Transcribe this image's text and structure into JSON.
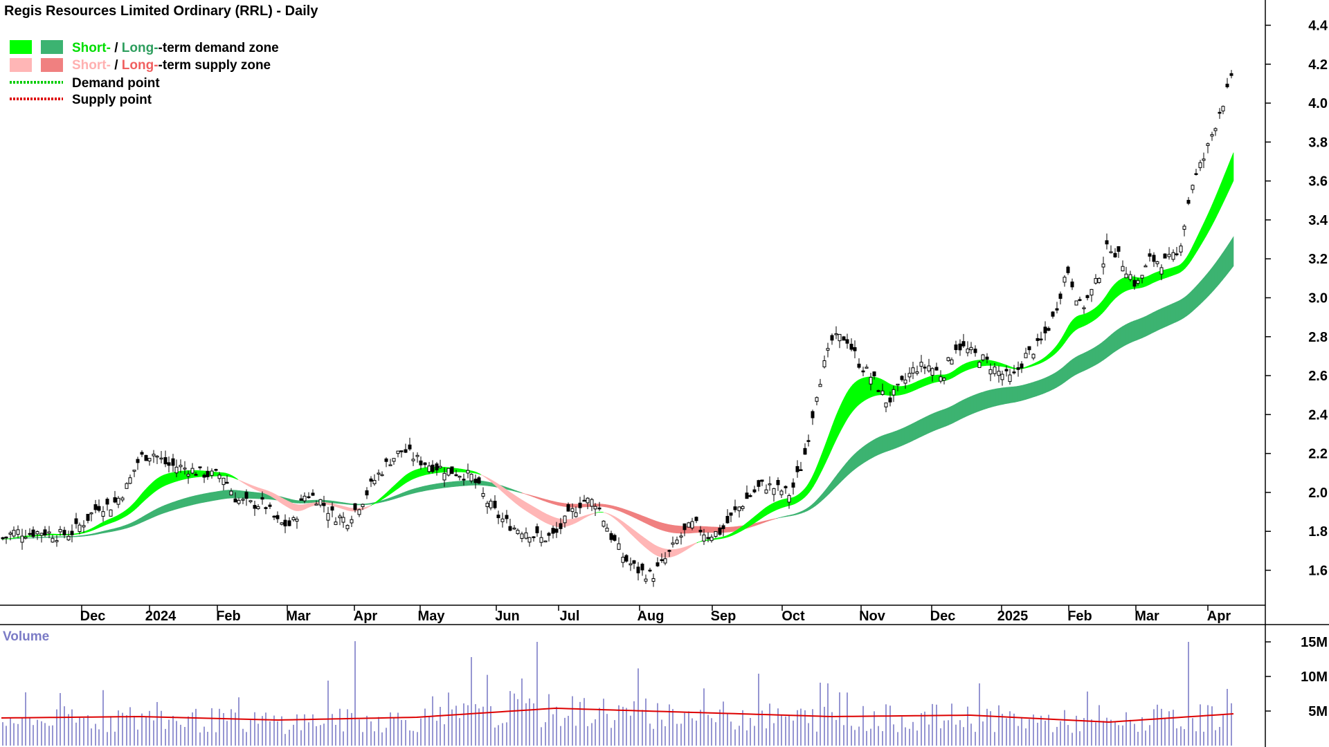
{
  "chart_data": {
    "type": "candlestick",
    "title": "Regis Resources Limited Ordinary (RRL) - Daily",
    "legend": {
      "placement": "top-left",
      "items": [
        {
          "part1": "Short-",
          "sep": " / ",
          "part2": "Long-",
          "part3": "-term demand zone",
          "kind": "demand-zone",
          "short_color": "#00ff00",
          "long_color": "#3cb371",
          "t1_color": "#00dd00",
          "t2_color": "#2e9e5e"
        },
        {
          "part1": "Short-",
          "sep": " / ",
          "part2": "Long-",
          "part3": "-term supply zone",
          "kind": "supply-zone",
          "short_color": "#ffb6b6",
          "long_color": "#f08080",
          "t1_color": "#ffb0b0",
          "t2_color": "#f06060"
        },
        {
          "label": "Demand point",
          "kind": "demand-point",
          "color": "#00cc00"
        },
        {
          "label": "Supply point",
          "kind": "supply-point",
          "color": "#dd0000"
        }
      ]
    },
    "price_axis": {
      "ticks": [
        "1.6",
        "1.8",
        "2.0",
        "2.2",
        "2.4",
        "2.6",
        "2.8",
        "3.0",
        "3.2",
        "3.4",
        "3.6",
        "3.8",
        "4.0",
        "4.2",
        "4.4"
      ],
      "ylim": [
        1.42,
        4.44
      ]
    },
    "x_axis": {
      "labels": [
        "Dec",
        "2024",
        "Feb",
        "Mar",
        "Apr",
        "May",
        "Jun",
        "Jul",
        "Aug",
        "Sep",
        "Oct",
        "Nov",
        "Dec",
        "2025",
        "Feb",
        "Mar",
        "Apr"
      ]
    },
    "price_series": {
      "x": [
        0,
        20,
        40,
        60,
        80,
        100,
        120,
        140,
        160,
        180,
        200,
        220,
        240,
        260,
        280,
        300,
        320,
        340,
        360,
        380,
        400,
        420,
        440,
        460,
        480,
        500,
        520,
        540,
        560,
        580,
        600,
        620,
        640,
        660,
        680,
        700,
        720,
        740,
        760,
        780,
        800,
        820,
        840,
        860,
        880,
        900,
        920,
        940,
        960,
        980,
        1000,
        1020,
        1040,
        1060,
        1080,
        1100,
        1120,
        1140,
        1160,
        1180,
        1200,
        1220,
        1240,
        1260,
        1280,
        1300,
        1320,
        1340,
        1360,
        1380,
        1400,
        1420,
        1440,
        1460,
        1480,
        1500,
        1520,
        1540,
        1560,
        1580,
        1600,
        1620,
        1640,
        1660,
        1680,
        1700,
        1720,
        1740,
        1760,
        1780
      ],
      "values": [
        1.76,
        1.8,
        1.79,
        1.8,
        1.78,
        1.79,
        1.85,
        1.93,
        1.93,
        2.02,
        2.18,
        2.2,
        2.14,
        2.13,
        2.11,
        2.09,
        2.09,
        1.96,
        1.94,
        1.94,
        1.84,
        1.83,
        2.0,
        1.96,
        1.88,
        1.86,
        1.95,
        2.07,
        2.16,
        2.22,
        2.17,
        2.14,
        2.12,
        2.1,
        2.08,
        1.96,
        1.87,
        1.82,
        1.8,
        1.76,
        1.78,
        1.88,
        1.96,
        1.95,
        1.78,
        1.66,
        1.6,
        1.57,
        1.66,
        1.77,
        1.84,
        1.78,
        1.8,
        1.9,
        1.98,
        2.04,
        2.02,
        1.99,
        2.18,
        2.55,
        2.78,
        2.8,
        2.66,
        2.58,
        2.46,
        2.55,
        2.64,
        2.65,
        2.6,
        2.76,
        2.72,
        2.68,
        2.62,
        2.58,
        2.7,
        2.76,
        2.9,
        3.15,
        2.94,
        3.06,
        3.28,
        3.18,
        3.06,
        3.2,
        3.18,
        3.22,
        3.58,
        3.74,
        3.96,
        4.14
      ]
    },
    "volume_axis": {
      "label": "Volume",
      "ticks": [
        "5M",
        "10M",
        "15M"
      ],
      "ylim": [
        0,
        16
      ]
    },
    "volume_baseline": {
      "x": [
        0,
        200,
        400,
        600,
        800,
        1000,
        1200,
        1400,
        1600,
        1780
      ],
      "values": [
        4.0,
        4.2,
        3.7,
        4.1,
        5.4,
        4.8,
        4.2,
        4.4,
        3.4,
        4.6
      ]
    },
    "volume_spikes": [
      [
        510,
        15.1
      ],
      [
        775,
        15.0
      ],
      [
        680,
        12.8
      ],
      [
        470,
        9.4
      ],
      [
        1180,
        9.1
      ],
      [
        1715,
        15.0
      ],
      [
        1190,
        9.0
      ],
      [
        1410,
        9.0
      ],
      [
        1090,
        10.4
      ],
      [
        1210,
        7.7
      ],
      [
        1770,
        8.2
      ]
    ],
    "colors": {
      "candle": "#000000",
      "volume_bar": "#7b7bc6",
      "volume_avg": "#dd0000",
      "short_demand": "#00ff00",
      "long_demand": "#3cb371",
      "short_supply": "#ffb6b6",
      "long_supply": "#f08080",
      "short_supply_dark": "#ff6622"
    }
  }
}
